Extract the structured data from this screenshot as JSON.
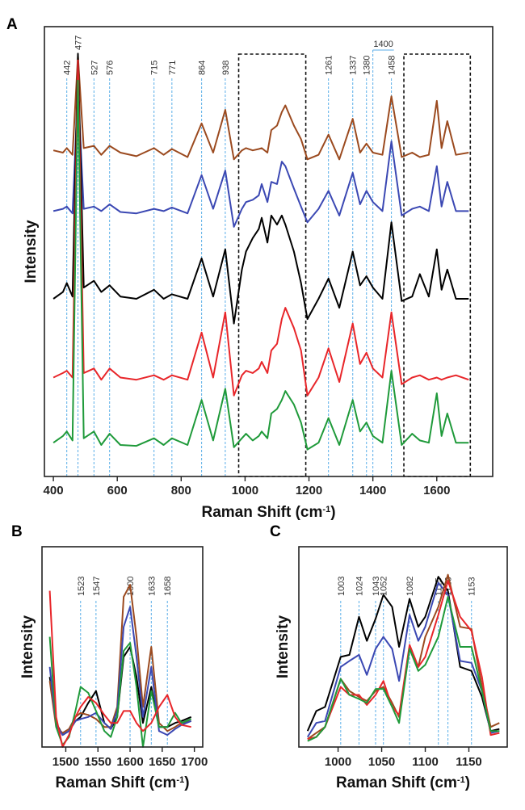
{
  "colors": {
    "brown": "#9b4a1f",
    "blue": "#3b48b3",
    "black": "#000000",
    "red": "#e8262a",
    "green": "#1f9a3a",
    "reference_line": "#5aaee8",
    "highlight_box": "#111111"
  },
  "chart_data": [
    {
      "panel": "A",
      "type": "line",
      "xlabel": "Raman Shift (cm-1)",
      "ylabel": "Intensity",
      "xlim": [
        372,
        1775
      ],
      "ylim": [
        0,
        10
      ],
      "xticks": [
        400,
        600,
        800,
        1000,
        1200,
        1400,
        1600
      ],
      "grid": false,
      "annotations": [
        442,
        477,
        527,
        576,
        715,
        771,
        864,
        938,
        1261,
        1337,
        1380,
        1458
      ],
      "bracket_annotation": {
        "label": "1400",
        "x": 1400
      },
      "highlight_regions": [
        [
          980,
          1190
        ],
        [
          1497,
          1705
        ]
      ],
      "x": [
        400,
        430,
        442,
        460,
        477,
        495,
        527,
        550,
        576,
        610,
        660,
        715,
        745,
        771,
        820,
        864,
        900,
        938,
        965,
        990,
        1003,
        1024,
        1043,
        1052,
        1070,
        1082,
        1100,
        1115,
        1126,
        1153,
        1175,
        1195,
        1230,
        1261,
        1295,
        1337,
        1360,
        1380,
        1400,
        1430,
        1458,
        1490,
        1523,
        1547,
        1575,
        1600,
        1615,
        1633,
        1660,
        1700
      ],
      "series": [
        {
          "color": "brown",
          "values": [
            7.25,
            7.2,
            7.3,
            7.15,
            9.35,
            7.3,
            7.35,
            7.15,
            7.35,
            7.2,
            7.12,
            7.3,
            7.15,
            7.28,
            7.1,
            7.85,
            7.2,
            8.15,
            7.05,
            7.25,
            7.3,
            7.25,
            7.28,
            7.3,
            7.2,
            7.7,
            7.8,
            8.1,
            8.25,
            7.8,
            7.5,
            7.05,
            7.15,
            7.6,
            7.05,
            7.95,
            7.2,
            7.4,
            7.2,
            7.15,
            8.45,
            7.1,
            7.2,
            7.1,
            7.15,
            8.35,
            7.3,
            7.9,
            7.15,
            7.2
          ]
        },
        {
          "color": "blue",
          "values": [
            5.9,
            5.95,
            6.0,
            5.85,
            8.6,
            5.95,
            6.0,
            5.9,
            6.05,
            5.88,
            5.85,
            5.95,
            5.9,
            5.98,
            5.85,
            6.7,
            5.95,
            6.8,
            5.55,
            5.95,
            6.1,
            6.15,
            6.25,
            6.5,
            6.1,
            6.55,
            6.5,
            7.0,
            6.9,
            6.4,
            6.0,
            5.65,
            5.95,
            6.35,
            5.8,
            6.75,
            6.05,
            6.35,
            6.1,
            5.9,
            7.45,
            5.8,
            5.95,
            6.0,
            5.9,
            6.9,
            6.0,
            6.55,
            5.9,
            5.9
          ]
        },
        {
          "color": "black",
          "values": [
            3.95,
            4.1,
            4.3,
            4.0,
            9.4,
            4.2,
            4.35,
            4.1,
            4.25,
            4.0,
            3.95,
            4.15,
            3.95,
            4.05,
            3.95,
            4.85,
            4.0,
            5.05,
            3.4,
            4.6,
            5.0,
            5.3,
            5.5,
            5.75,
            5.2,
            5.8,
            5.6,
            5.8,
            5.6,
            5.0,
            4.3,
            3.5,
            3.95,
            4.4,
            3.75,
            5.0,
            4.25,
            4.45,
            4.2,
            3.95,
            5.65,
            3.9,
            4.0,
            4.5,
            4.0,
            5.05,
            4.15,
            4.6,
            3.95,
            3.95
          ]
        },
        {
          "color": "red",
          "values": [
            2.2,
            2.3,
            2.35,
            2.2,
            9.25,
            2.3,
            2.4,
            2.15,
            2.4,
            2.2,
            2.15,
            2.25,
            2.15,
            2.25,
            2.15,
            3.2,
            2.2,
            3.65,
            1.8,
            2.25,
            2.35,
            2.3,
            2.4,
            2.55,
            2.3,
            2.8,
            2.95,
            3.5,
            3.75,
            3.3,
            2.8,
            1.8,
            2.2,
            2.85,
            2.1,
            3.4,
            2.5,
            2.75,
            2.4,
            2.2,
            3.65,
            2.05,
            2.2,
            2.25,
            2.15,
            2.2,
            2.15,
            2.2,
            2.25,
            2.15
          ]
        },
        {
          "color": "green",
          "values": [
            0.75,
            0.9,
            1.0,
            0.8,
            8.8,
            0.85,
            1.0,
            0.7,
            0.95,
            0.7,
            0.68,
            0.85,
            0.7,
            0.85,
            0.7,
            1.7,
            0.8,
            1.95,
            0.65,
            0.85,
            0.95,
            0.8,
            0.9,
            1.0,
            0.85,
            1.4,
            1.5,
            1.7,
            1.9,
            1.6,
            1.2,
            0.6,
            0.75,
            1.3,
            0.7,
            1.7,
            1.0,
            1.2,
            0.9,
            0.75,
            2.35,
            0.7,
            0.95,
            0.8,
            0.75,
            1.85,
            0.9,
            1.4,
            0.75,
            0.75
          ]
        }
      ]
    },
    {
      "panel": "B",
      "type": "line",
      "xlabel": "Raman Shift (cm-1)",
      "ylabel": "Intensity",
      "xlim": [
        1463,
        1713
      ],
      "ylim": [
        0,
        10
      ],
      "xticks": [
        1500,
        1550,
        1600,
        1650,
        1700
      ],
      "grid": false,
      "annotations": [
        1523,
        1547,
        1600,
        1633,
        1658
      ],
      "x": [
        1475,
        1485,
        1495,
        1505,
        1515,
        1523,
        1535,
        1547,
        1560,
        1570,
        1580,
        1590,
        1600,
        1610,
        1620,
        1633,
        1645,
        1658,
        1670,
        1680,
        1695
      ],
      "series": [
        {
          "color": "black",
          "values": [
            3.5,
            1.2,
            0.6,
            0.8,
            1.3,
            1.5,
            2.2,
            2.8,
            1.2,
            0.9,
            1.5,
            4.5,
            5.0,
            3.5,
            1.2,
            3.0,
            1.0,
            1.0,
            1.2,
            1.3,
            1.5
          ]
        },
        {
          "color": "brown",
          "values": [
            3.3,
            1.0,
            0.7,
            0.9,
            1.5,
            1.7,
            1.6,
            1.4,
            1.0,
            1.0,
            2.0,
            7.5,
            8.1,
            5.5,
            2.0,
            5.0,
            1.2,
            0.8,
            1.0,
            1.2,
            1.3
          ]
        },
        {
          "color": "blue",
          "values": [
            4.0,
            1.1,
            0.6,
            0.8,
            1.3,
            1.4,
            1.5,
            1.7,
            1.2,
            0.9,
            1.8,
            6.0,
            7.0,
            4.5,
            1.5,
            4.0,
            0.8,
            0.6,
            0.9,
            1.1,
            1.3
          ]
        },
        {
          "color": "green",
          "values": [
            5.5,
            1.0,
            0.1,
            0.5,
            1.8,
            3.0,
            2.7,
            1.8,
            0.8,
            0.5,
            1.5,
            4.8,
            5.2,
            3.0,
            0.0,
            2.8,
            1.0,
            1.0,
            1.7,
            1.2,
            1.4
          ]
        },
        {
          "color": "red",
          "values": [
            7.8,
            1.5,
            0.0,
            0.6,
            1.5,
            2.0,
            2.5,
            2.2,
            1.6,
            1.2,
            1.2,
            1.8,
            1.8,
            1.2,
            0.8,
            1.2,
            2.0,
            2.6,
            1.5,
            1.1,
            1.0
          ]
        }
      ]
    },
    {
      "panel": "C",
      "type": "line",
      "xlabel": "Raman Shift (cm-1)",
      "ylabel": "Intensity",
      "xlim": [
        955,
        1194
      ],
      "ylim": [
        0,
        10
      ],
      "xticks": [
        1000,
        1050,
        1100,
        1150
      ],
      "grid": false,
      "annotations": [
        1003,
        1024,
        1043,
        1052,
        1082,
        1115,
        1126,
        1153
      ],
      "x": [
        965,
        975,
        985,
        1003,
        1013,
        1024,
        1033,
        1043,
        1052,
        1062,
        1070,
        1082,
        1092,
        1100,
        1115,
        1126,
        1140,
        1153,
        1165,
        1175,
        1185
      ],
      "series": [
        {
          "color": "black",
          "values": [
            0.8,
            1.8,
            2.0,
            4.5,
            4.6,
            6.5,
            5.3,
            6.4,
            7.6,
            7.0,
            5.0,
            7.4,
            6.0,
            6.5,
            8.5,
            7.8,
            4.0,
            3.8,
            2.5,
            0.8,
            0.9
          ]
        },
        {
          "color": "blue",
          "values": [
            0.5,
            1.2,
            1.3,
            4.0,
            4.3,
            4.6,
            3.6,
            4.9,
            5.5,
            4.9,
            3.3,
            6.6,
            5.3,
            6.0,
            8.2,
            7.6,
            4.3,
            4.2,
            2.8,
            0.7,
            0.8
          ]
        },
        {
          "color": "brown",
          "values": [
            0.4,
            0.7,
            1.0,
            3.4,
            2.8,
            2.5,
            2.3,
            2.8,
            3.0,
            2.2,
            1.5,
            5.0,
            4.0,
            5.5,
            7.0,
            8.6,
            6.0,
            5.9,
            3.0,
            1.0,
            1.2
          ]
        },
        {
          "color": "red",
          "values": [
            0.4,
            0.5,
            1.0,
            3.0,
            2.6,
            2.6,
            2.1,
            2.6,
            3.3,
            2.0,
            1.6,
            5.1,
            4.0,
            4.5,
            6.6,
            8.3,
            6.5,
            5.8,
            3.5,
            0.6,
            0.7
          ]
        },
        {
          "color": "green",
          "values": [
            0.3,
            0.5,
            1.0,
            3.4,
            2.6,
            2.4,
            2.2,
            2.9,
            2.9,
            2.0,
            1.2,
            4.9,
            3.8,
            4.1,
            5.5,
            7.5,
            5.0,
            5.0,
            2.8,
            0.8,
            0.8
          ]
        }
      ]
    }
  ]
}
